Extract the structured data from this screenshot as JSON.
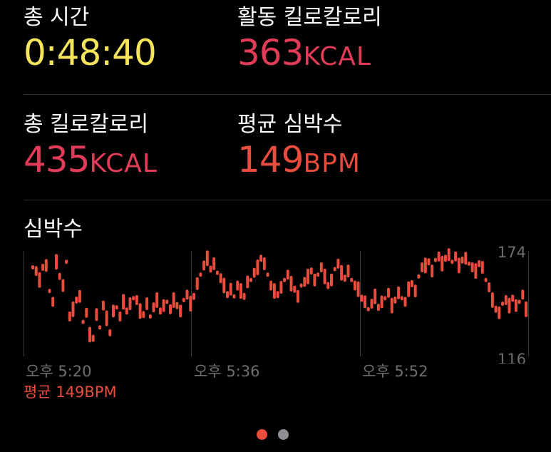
{
  "colors": {
    "time": "#f6e55b",
    "calorie": "#e13b57",
    "heart": "#e84c3d",
    "axis": "#6e6e72",
    "dot_inactive": "#8e8e93"
  },
  "metrics": {
    "total_time": {
      "label": "총 시간",
      "value": "0:48:40"
    },
    "active_kcal": {
      "label": "활동 킬로칼로리",
      "value": "363",
      "unit": "KCAL"
    },
    "total_kcal": {
      "label": "총 킬로칼로리",
      "value": "435",
      "unit": "KCAL"
    },
    "avg_hr": {
      "label": "평균 심박수",
      "value": "149",
      "unit": "BPM"
    }
  },
  "heart_rate": {
    "title": "심박수",
    "y_max_label": "174",
    "y_min_label": "116",
    "time_labels": [
      "오후 5:20",
      "오후 5:36",
      "오후 5:52"
    ],
    "average_label": "평균 149BPM"
  },
  "chart_data": {
    "type": "scatter",
    "title": "심박수",
    "xlabel": "",
    "ylabel": "",
    "x_tick_labels": [
      "오후 5:20",
      "오후 5:36",
      "오후 5:52"
    ],
    "y_tick_labels": [
      "116",
      "174"
    ],
    "ylim": [
      116,
      174
    ],
    "unit": "BPM",
    "average": 149,
    "series": [
      {
        "values": [
          165,
          163,
          158,
          165,
          166,
          152,
          146,
          168,
          160,
          155,
          168,
          138,
          142,
          147,
          149,
          135,
          140,
          128,
          126,
          139,
          132,
          144,
          137,
          129,
          141,
          143,
          138,
          146,
          141,
          145,
          148,
          147,
          141,
          139,
          145,
          138,
          143,
          147,
          141,
          144,
          146,
          142,
          147,
          144,
          141,
          147,
          150,
          145,
          149,
          156,
          161,
          166,
          170,
          164,
          167,
          162,
          159,
          155,
          150,
          153,
          149,
          155,
          152,
          149,
          157,
          158,
          162,
          165,
          170,
          167,
          161,
          155,
          152,
          150,
          154,
          158,
          161,
          156,
          153,
          149,
          155,
          157,
          160,
          163,
          158,
          161,
          165,
          160,
          155,
          158,
          164,
          167,
          162,
          159,
          163,
          158,
          155,
          153,
          148,
          146,
          142,
          145,
          149,
          143,
          146,
          148,
          151,
          144,
          147,
          151,
          148,
          146,
          153,
          156,
          152,
          160,
          165,
          166,
          168,
          163,
          169,
          171,
          167,
          170,
          172,
          168,
          171,
          166,
          169,
          170,
          167,
          165,
          163,
          167,
          165,
          158,
          154,
          147,
          142,
          140,
          145,
          147,
          144,
          148,
          144,
          146,
          150,
          142
        ]
      }
    ]
  }
}
